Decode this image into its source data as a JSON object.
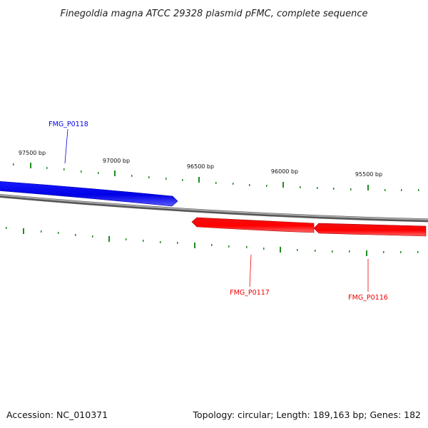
{
  "title": "Finegoldia magna ATCC 29328 plasmid pFMC, complete sequence",
  "footer": {
    "accession": "Accession: NC_010371",
    "summary": "Topology: circular; Length: 189,163 bp; Genes: 182"
  },
  "position_labels": [
    "97500 bp",
    "97000 bp",
    "96500 bp",
    "96000 bp",
    "95500 bp"
  ],
  "genes": [
    {
      "id": "FMG_P0118",
      "strand": "forward",
      "color": "#0000ee"
    },
    {
      "id": "FMG_P0117",
      "strand": "reverse",
      "color": "#ee0000"
    },
    {
      "id": "FMG_P0116",
      "strand": "reverse",
      "color": "#ee0000"
    }
  ],
  "colors": {
    "forward_gene": "#0000ee",
    "reverse_gene": "#ee0000",
    "backbone": "#808080",
    "tick": "#228b22"
  }
}
